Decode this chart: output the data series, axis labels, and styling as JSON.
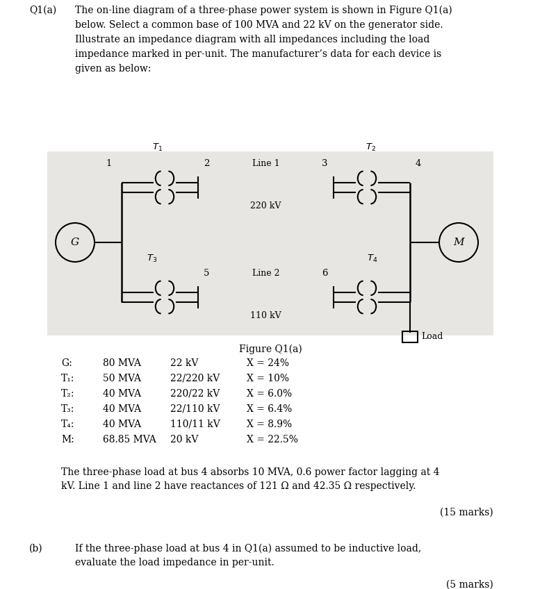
{
  "bg_color": "#e8e6e2",
  "white_bg": "#ffffff",
  "figure_caption": "Figure Q1(a)",
  "table_rows": [
    [
      "G:",
      "80 MVA",
      "22 kV",
      "X = 24%"
    ],
    [
      "T₁:",
      "50 MVA",
      "22/220 kV",
      "X = 10%"
    ],
    [
      "T₂:",
      "40 MVA",
      "220/22 kV",
      "X = 6.0%"
    ],
    [
      "T₃:",
      "40 MVA",
      "22/110 kV",
      "X = 6.4%"
    ],
    [
      "T₄:",
      "40 MVA",
      "110/11 kV",
      "X = 8.9%"
    ],
    [
      "M:",
      "68.85 MVA",
      "20 kV",
      "X = 22.5%"
    ]
  ],
  "bottom_text1": "The three-phase load at bus 4 absorbs 10 MVA, 0.6 power factor lagging at 4",
  "bottom_text2": "kV. Line 1 and line 2 have reactances of 121 Ω and 42.35 Ω respectively.",
  "marks_15": "(15 marks)",
  "part_b_label": "(b)",
  "part_b_text1": "If the three-phase load at bus 4 in Q1(a) assumed to be inductive load,",
  "part_b_text2": "evaluate the load impedance in per-unit.",
  "marks_5": "(5 marks)",
  "header_lines": [
    "The on-line diagram of a three-phase power system is shown in Figure Q1(a)",
    "below. Select a common base of 100 MVA and 22 kV on the generator side.",
    "Illustrate an impedance diagram with all impedances including the load",
    "impedance marked in per-unit. The manufacturer’s data for each device is",
    "given as below:"
  ]
}
